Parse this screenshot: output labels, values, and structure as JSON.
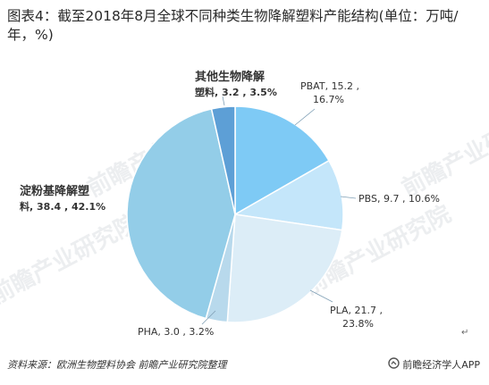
{
  "title": "图表4：截至2018年8月全球不同种类生物降解塑料产能结构(单位：万吨/年，%)",
  "footer": {
    "source": "资料来源：欧洲生物塑料协会 前瞻产业研究院整理",
    "brand": "前瞻经济学人APP"
  },
  "watermark": "前瞻产业研究院",
  "chart_data": {
    "type": "pie",
    "title": "图表4：截至2018年8月全球不同种类生物降解塑料产能结构(单位：万吨/年，%)",
    "unit": "万吨/年，%",
    "slices": [
      {
        "label": "PBAT",
        "value": 15.2,
        "percent": 16.7,
        "color": "#7ecaf5",
        "label_text_1": "PBAT, 15.2 ,",
        "label_text_2": "16.7%"
      },
      {
        "label": "PBS",
        "value": 9.7,
        "percent": 10.6,
        "color": "#c4e6fa",
        "label_text_1": "PBS, 9.7 , 10.6%",
        "label_text_2": ""
      },
      {
        "label": "PLA",
        "value": 21.7,
        "percent": 23.8,
        "color": "#dcedf7",
        "label_text_1": "PLA, 21.7 ,",
        "label_text_2": "23.8%"
      },
      {
        "label": "PHA",
        "value": 3.0,
        "percent": 3.2,
        "color": "#b8d9ec",
        "label_text_1": "PHA, 3.0 , 3.2%",
        "label_text_2": ""
      },
      {
        "label": "淀粉基降解塑料",
        "value": 38.4,
        "percent": 42.1,
        "color": "#93cde8",
        "label_text_1": "淀粉基降解塑",
        "label_text_2": "料, 38.4 , 42.1%"
      },
      {
        "label": "其他生物降解塑料",
        "value": 3.2,
        "percent": 3.5,
        "color": "#5d9fd6",
        "label_text_1": "其他生物降解",
        "label_text_2": "塑料, 3.2 , 3.5%"
      }
    ],
    "start_angle_deg": 0,
    "direction": "clockwise",
    "legend": "none"
  }
}
